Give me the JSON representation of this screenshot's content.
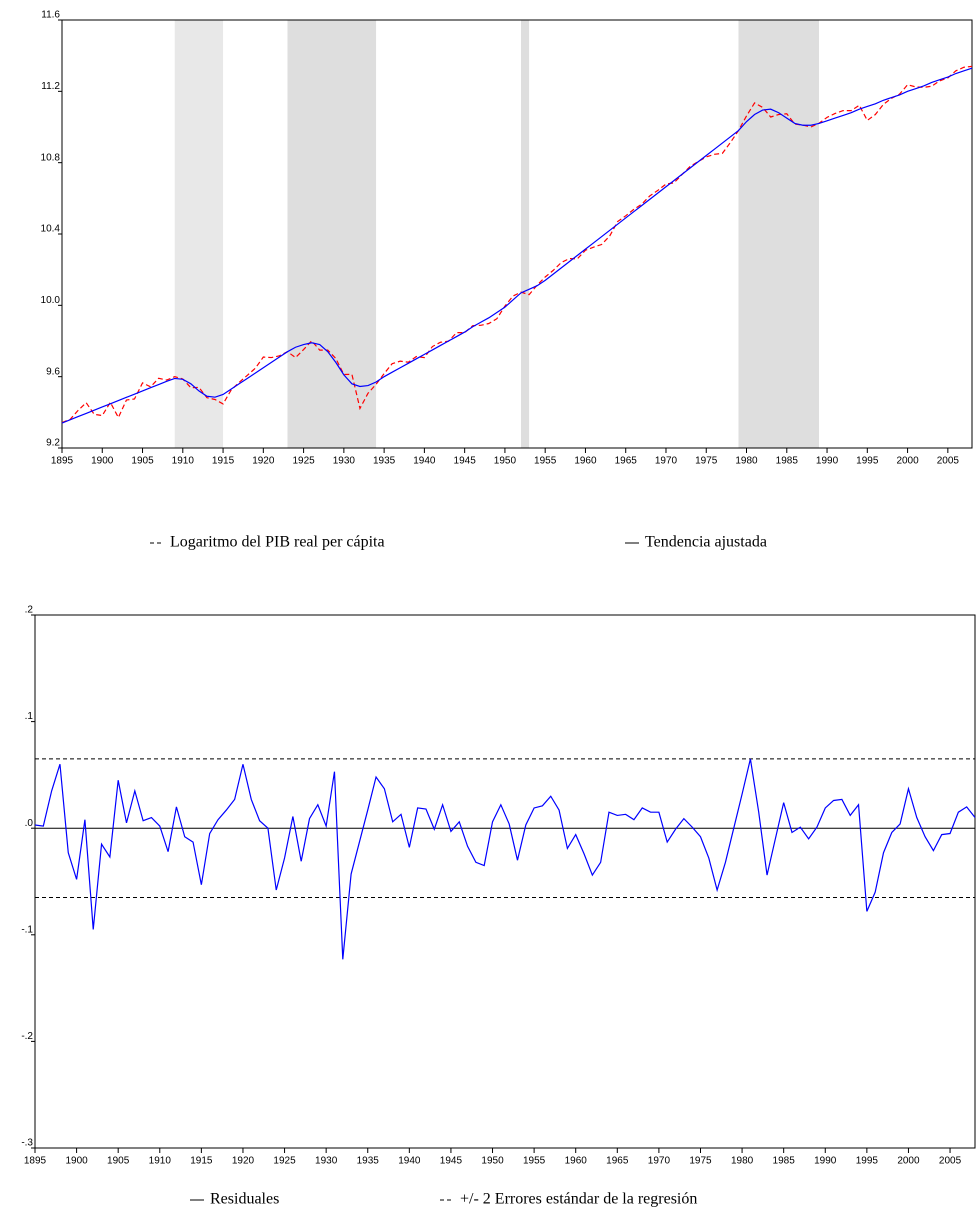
{
  "chart_data": [
    {
      "type": "line",
      "x": [
        1895,
        1896,
        1897,
        1898,
        1899,
        1900,
        1901,
        1902,
        1903,
        1904,
        1905,
        1906,
        1907,
        1908,
        1909,
        1910,
        1911,
        1912,
        1913,
        1914,
        1915,
        1916,
        1917,
        1918,
        1919,
        1920,
        1921,
        1922,
        1923,
        1924,
        1925,
        1926,
        1927,
        1928,
        1929,
        1930,
        1931,
        1932,
        1933,
        1934,
        1935,
        1936,
        1937,
        1938,
        1939,
        1940,
        1941,
        1942,
        1943,
        1944,
        1945,
        1946,
        1947,
        1948,
        1949,
        1950,
        1951,
        1952,
        1953,
        1954,
        1955,
        1956,
        1957,
        1958,
        1959,
        1960,
        1961,
        1962,
        1963,
        1964,
        1965,
        1966,
        1967,
        1968,
        1969,
        1970,
        1971,
        1972,
        1973,
        1974,
        1975,
        1976,
        1977,
        1978,
        1979,
        1980,
        1981,
        1982,
        1983,
        1984,
        1985,
        1986,
        1987,
        1988,
        1989,
        1990,
        1991,
        1992,
        1993,
        1994,
        1995,
        1996,
        1997,
        1998,
        1999,
        2000,
        2001,
        2002,
        2003,
        2004,
        2005,
        2006,
        2007,
        2008
      ],
      "series": [
        {
          "name": "Logaritmo del PIB real per cápita",
          "color": "#ff0000",
          "dash": true,
          "values": [
            9.343,
            9.36,
            9.411,
            9.454,
            9.389,
            9.382,
            9.456,
            9.371,
            9.469,
            9.475,
            9.565,
            9.543,
            9.591,
            9.581,
            9.6,
            9.587,
            9.538,
            9.54,
            9.482,
            9.472,
            9.447,
            9.525,
            9.568,
            9.607,
            9.647,
            9.71,
            9.707,
            9.717,
            9.74,
            9.707,
            9.752,
            9.801,
            9.749,
            9.749,
            9.702,
            9.612,
            9.613,
            9.422,
            9.507,
            9.557,
            9.617,
            9.673,
            9.687,
            9.681,
            9.713,
            9.707,
            9.769,
            9.793,
            9.799,
            9.847,
            9.847,
            9.886,
            9.888,
            9.898,
            9.925,
            9.996,
            10.052,
            10.074,
            10.06,
            10.113,
            10.159,
            10.196,
            10.24,
            10.262,
            10.261,
            10.309,
            10.326,
            10.341,
            10.388,
            10.47,
            10.502,
            10.538,
            10.568,
            10.614,
            10.645,
            10.68,
            10.687,
            10.734,
            10.779,
            10.806,
            10.832,
            10.847,
            10.852,
            10.913,
            10.98,
            11.062,
            11.135,
            11.11,
            11.056,
            11.07,
            11.074,
            11.016,
            11.011,
            11.0,
            11.021,
            11.054,
            11.076,
            11.092,
            11.092,
            11.122,
            11.037,
            11.07,
            11.127,
            11.161,
            11.184,
            11.237,
            11.225,
            11.222,
            11.229,
            11.259,
            11.275,
            11.315,
            11.335,
            11.34
          ]
        },
        {
          "name": "Tendencia ajustada",
          "color": "#0000ff",
          "dash": false,
          "values": [
            9.34,
            9.358,
            9.376,
            9.394,
            9.412,
            9.43,
            9.448,
            9.466,
            9.484,
            9.502,
            9.52,
            9.538,
            9.556,
            9.574,
            9.59,
            9.585,
            9.56,
            9.52,
            9.49,
            9.485,
            9.5,
            9.53,
            9.56,
            9.59,
            9.62,
            9.65,
            9.68,
            9.71,
            9.74,
            9.765,
            9.78,
            9.79,
            9.78,
            9.74,
            9.68,
            9.61,
            9.56,
            9.545,
            9.55,
            9.57,
            9.6,
            9.625,
            9.65,
            9.675,
            9.7,
            9.725,
            9.75,
            9.775,
            9.8,
            9.825,
            9.85,
            9.88,
            9.905,
            9.93,
            9.96,
            9.99,
            10.03,
            10.07,
            10.09,
            10.11,
            10.14,
            10.175,
            10.21,
            10.245,
            10.28,
            10.315,
            10.35,
            10.385,
            10.42,
            10.455,
            10.49,
            10.525,
            10.56,
            10.595,
            10.63,
            10.665,
            10.7,
            10.735,
            10.77,
            10.805,
            10.84,
            10.875,
            10.91,
            10.945,
            10.98,
            11.03,
            11.07,
            11.095,
            11.1,
            11.08,
            11.05,
            11.02,
            11.01,
            11.01,
            11.02,
            11.035,
            11.05,
            11.065,
            11.08,
            11.1,
            11.115,
            11.13,
            11.15,
            11.165,
            11.18,
            11.2,
            11.215,
            11.23,
            11.25,
            11.265,
            11.28,
            11.3,
            11.315,
            11.33
          ]
        }
      ],
      "shaded_periods": [
        {
          "start": 1909,
          "end": 1915,
          "color": "#e8e8e8"
        },
        {
          "start": 1923,
          "end": 1934,
          "color": "#dedede"
        },
        {
          "start": 1952,
          "end": 1953,
          "color": "#dedede"
        },
        {
          "start": 1979,
          "end": 1989,
          "color": "#dedede"
        }
      ],
      "xlim": [
        1895,
        2008
      ],
      "xticks": [
        1895,
        1900,
        1905,
        1910,
        1915,
        1920,
        1925,
        1930,
        1935,
        1940,
        1945,
        1950,
        1955,
        1960,
        1965,
        1970,
        1975,
        1980,
        1985,
        1990,
        1995,
        2000,
        2005
      ],
      "ylim": [
        9.2,
        11.6
      ],
      "yticks": [
        9.2,
        9.6,
        {
          "value": 10,
          "label": "10.0"
        },
        10.4,
        10.8,
        11.2,
        11.6
      ]
    },
    {
      "type": "line",
      "x": [
        1895,
        1896,
        1897,
        1898,
        1899,
        1900,
        1901,
        1902,
        1903,
        1904,
        1905,
        1906,
        1907,
        1908,
        1909,
        1910,
        1911,
        1912,
        1913,
        1914,
        1915,
        1916,
        1917,
        1918,
        1919,
        1920,
        1921,
        1922,
        1923,
        1924,
        1925,
        1926,
        1927,
        1928,
        1929,
        1930,
        1931,
        1932,
        1933,
        1934,
        1935,
        1936,
        1937,
        1938,
        1939,
        1940,
        1941,
        1942,
        1943,
        1944,
        1945,
        1946,
        1947,
        1948,
        1949,
        1950,
        1951,
        1952,
        1953,
        1954,
        1955,
        1956,
        1957,
        1958,
        1959,
        1960,
        1961,
        1962,
        1963,
        1964,
        1965,
        1966,
        1967,
        1968,
        1969,
        1970,
        1971,
        1972,
        1973,
        1974,
        1975,
        1976,
        1977,
        1978,
        1979,
        1980,
        1981,
        1982,
        1983,
        1984,
        1985,
        1986,
        1987,
        1988,
        1989,
        1990,
        1991,
        1992,
        1993,
        1994,
        1995,
        1996,
        1997,
        1998,
        1999,
        2000,
        2001,
        2002,
        2003,
        2004,
        2005,
        2006,
        2007,
        2008
      ],
      "series": [
        {
          "name": "Residuales",
          "color": "#0000ff",
          "dash": false,
          "values": [
            0.003,
            0.002,
            0.035,
            0.06,
            -0.023,
            -0.048,
            0.008,
            -0.095,
            -0.015,
            -0.027,
            0.045,
            0.005,
            0.035,
            0.007,
            0.01,
            0.002,
            -0.022,
            0.02,
            -0.008,
            -0.013,
            -0.053,
            -0.005,
            0.008,
            0.017,
            0.027,
            0.06,
            0.027,
            0.007,
            0.0,
            -0.058,
            -0.028,
            0.011,
            -0.031,
            0.009,
            0.022,
            0.002,
            0.053,
            -0.123,
            -0.043,
            -0.013,
            0.017,
            0.048,
            0.037,
            0.006,
            0.013,
            -0.018,
            0.019,
            0.018,
            -0.001,
            0.022,
            -0.003,
            0.006,
            -0.017,
            -0.032,
            -0.035,
            0.006,
            0.022,
            0.004,
            -0.03,
            0.003,
            0.019,
            0.021,
            0.03,
            0.017,
            -0.019,
            -0.006,
            -0.024,
            -0.044,
            -0.032,
            0.015,
            0.012,
            0.013,
            0.008,
            0.019,
            0.015,
            0.015,
            -0.013,
            -0.001,
            0.009,
            0.001,
            -0.008,
            -0.028,
            -0.058,
            -0.032,
            0.0,
            0.032,
            0.065,
            0.015,
            -0.044,
            -0.01,
            0.024,
            -0.004,
            0.001,
            -0.01,
            0.001,
            0.019,
            0.026,
            0.027,
            0.012,
            0.022,
            -0.078,
            -0.06,
            -0.023,
            -0.004,
            0.004,
            0.037,
            0.01,
            -0.008,
            -0.021,
            -0.006,
            -0.005,
            0.015,
            0.02,
            0.01
          ]
        }
      ],
      "bands": {
        "name": "+/- 2 Errores estándar de la regresión",
        "color": "#000000",
        "values": [
          0.065,
          -0.065
        ]
      },
      "zero_line": true,
      "xlim": [
        1895,
        2008
      ],
      "xticks": [
        1895,
        1900,
        1905,
        1910,
        1915,
        1920,
        1925,
        1930,
        1935,
        1940,
        1945,
        1950,
        1955,
        1960,
        1965,
        1970,
        1975,
        1980,
        1985,
        1990,
        1995,
        2000,
        2005
      ],
      "ylim": [
        -0.3,
        0.2
      ],
      "yticks": [
        {
          "value": -0.3,
          "label": "-.3"
        },
        {
          "value": -0.2,
          "label": "-.2"
        },
        {
          "value": -0.1,
          "label": "-.1"
        },
        {
          "value": 0,
          "label": ".0"
        },
        {
          "value": 0.1,
          "label": ".1"
        },
        {
          "value": 0.2,
          "label": ".2"
        }
      ]
    }
  ]
}
